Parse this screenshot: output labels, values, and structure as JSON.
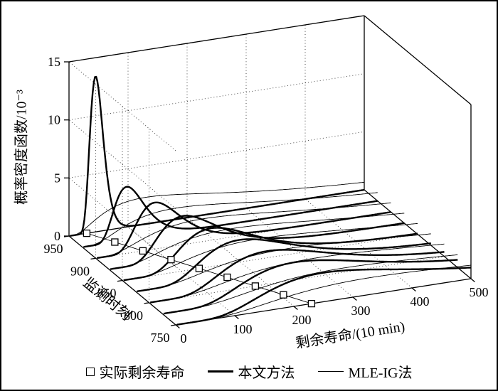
{
  "figure": {
    "background": "#ffffff",
    "frame_color": "#000000"
  },
  "legend": {
    "items": [
      {
        "marker": "square-marker",
        "label": "实际剩余寿命"
      },
      {
        "marker": "thick-line",
        "label": "本文方法"
      },
      {
        "marker": "thin-line",
        "label": "MLE-IG法"
      }
    ]
  },
  "chart_data": {
    "type": "line",
    "projection": "3d-waterfall",
    "title": "",
    "zlabel": "概率密度函数/10⁻³",
    "xlabel": "监测时刻",
    "ylabel": "剩余寿命/(10 min)",
    "zlim": [
      0,
      15
    ],
    "xlim": [
      750,
      950
    ],
    "ylim": [
      0,
      500
    ],
    "z_ticks": [
      0,
      5,
      10,
      15
    ],
    "x_ticks": [
      950,
      900,
      850,
      800,
      750
    ],
    "y_ticks": [
      0,
      100,
      200,
      300,
      400,
      500
    ],
    "grid": true,
    "grid_style": "dotted",
    "series_legend": [
      "实际剩余寿命",
      "本文方法",
      "MLE-IG法"
    ],
    "slices": [
      {
        "t": 950,
        "actual_rul": 30,
        "proposed": {
          "mode": 45,
          "peak": 13.4,
          "sigma": 0.25
        },
        "mle_ig": {
          "mode": 130,
          "peak": 2.3,
          "sigma": 0.85
        }
      },
      {
        "t": 925,
        "actual_rul": 55,
        "proposed": {
          "mode": 75,
          "peak": 4.6,
          "sigma": 0.34
        },
        "mle_ig": {
          "mode": 160,
          "peak": 2.1,
          "sigma": 0.78
        }
      },
      {
        "t": 900,
        "actual_rul": 80,
        "proposed": {
          "mode": 100,
          "peak": 4.0,
          "sigma": 0.37
        },
        "mle_ig": {
          "mode": 185,
          "peak": 1.95,
          "sigma": 0.74
        }
      },
      {
        "t": 875,
        "actual_rul": 105,
        "proposed": {
          "mode": 125,
          "peak": 3.6,
          "sigma": 0.4
        },
        "mle_ig": {
          "mode": 210,
          "peak": 1.85,
          "sigma": 0.7
        }
      },
      {
        "t": 850,
        "actual_rul": 130,
        "proposed": {
          "mode": 150,
          "peak": 3.3,
          "sigma": 0.42
        },
        "mle_ig": {
          "mode": 235,
          "peak": 1.75,
          "sigma": 0.67
        }
      },
      {
        "t": 825,
        "actual_rul": 155,
        "proposed": {
          "mode": 175,
          "peak": 3.05,
          "sigma": 0.44
        },
        "mle_ig": {
          "mode": 260,
          "peak": 1.65,
          "sigma": 0.65
        }
      },
      {
        "t": 800,
        "actual_rul": 180,
        "proposed": {
          "mode": 200,
          "peak": 2.85,
          "sigma": 0.46
        },
        "mle_ig": {
          "mode": 285,
          "peak": 1.6,
          "sigma": 0.63
        }
      },
      {
        "t": 775,
        "actual_rul": 205,
        "proposed": {
          "mode": 225,
          "peak": 2.65,
          "sigma": 0.48
        },
        "mle_ig": {
          "mode": 310,
          "peak": 1.5,
          "sigma": 0.61
        }
      },
      {
        "t": 750,
        "actual_rul": 230,
        "proposed": {
          "mode": 250,
          "peak": 2.5,
          "sigma": 0.5
        },
        "mle_ig": {
          "mode": 335,
          "peak": 1.45,
          "sigma": 0.6
        }
      }
    ]
  }
}
